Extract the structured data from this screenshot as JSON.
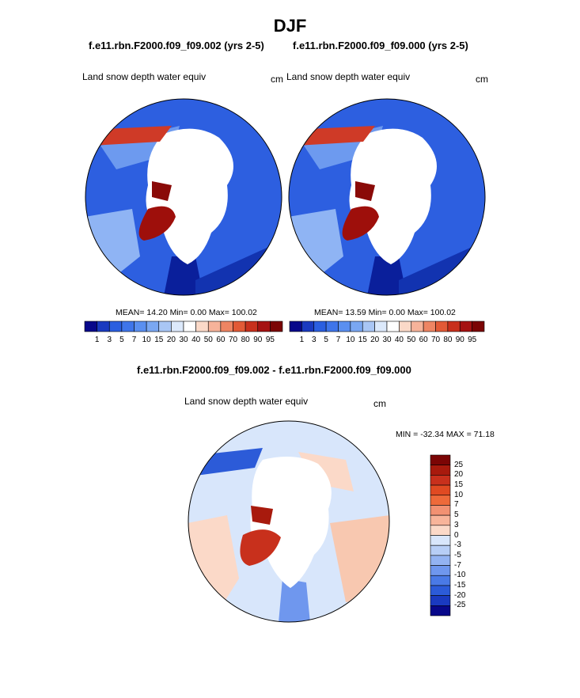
{
  "title": "DJF",
  "panels": [
    {
      "case": "f.e11.rbn.F2000.f09_f09.002 (yrs 2-5)",
      "variable": "Land snow depth water equiv",
      "units": "cm",
      "stats": "MEAN=  14.20  Min=   0.00  Max= 100.02"
    },
    {
      "case": "f.e11.rbn.F2000.f09_f09.000 (yrs 2-5)",
      "variable": "Land snow depth water equiv",
      "units": "cm",
      "stats": "MEAN=  13.59  Min=   0.00  Max= 100.02"
    }
  ],
  "diff_panel": {
    "title": "f.e11.rbn.F2000.f09_f09.002 - f.e11.rbn.F2000.f09_f09.000",
    "variable": "Land snow depth water equiv",
    "units": "cm",
    "minmax": "MIN = -32.34 MAX =  71.18"
  },
  "colorbar_abs": {
    "labels": [
      "1",
      "3",
      "5",
      "7",
      "10",
      "15",
      "20",
      "30",
      "40",
      "50",
      "60",
      "70",
      "80",
      "90",
      "95"
    ],
    "colors": [
      "#08088a",
      "#1a3ac0",
      "#2b5fe0",
      "#3f75ea",
      "#5a8ff0",
      "#7aa7f2",
      "#a9c6f5",
      "#dce9fb",
      "#ffffff",
      "#fbd9c8",
      "#f6b39a",
      "#ee8563",
      "#e25a36",
      "#c8301c",
      "#a51212",
      "#7b0505"
    ]
  },
  "colorbar_diff": {
    "labels": [
      "25",
      "20",
      "15",
      "10",
      "7",
      "5",
      "3",
      "0",
      "-3",
      "-5",
      "-7",
      "-10",
      "-15",
      "-20",
      "-25"
    ],
    "colors": [
      "#7b0505",
      "#a81a0d",
      "#c8301c",
      "#e04a22",
      "#ee6a3a",
      "#f29172",
      "#f8b49a",
      "#fbd9c8",
      "#d8e6fb",
      "#b7cef6",
      "#93b3f2",
      "#6f97ee",
      "#4a7ae6",
      "#2c5bd8",
      "#1a3ac0",
      "#08088a"
    ]
  }
}
